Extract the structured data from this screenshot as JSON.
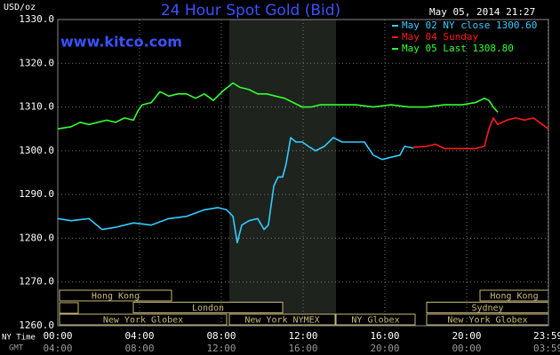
{
  "chart_data": {
    "type": "line",
    "title": "24 Hour Spot Gold (Bid)",
    "y_label": "USD/oz",
    "timestamp": "May 05, 2014 21:27",
    "source": "www.kitco.com",
    "x_axis_labels": [
      "NY Time",
      "GMT"
    ],
    "xlim": [
      0,
      24
    ],
    "xticks": [
      {
        "value": 0,
        "label": "00:00"
      },
      {
        "value": 4,
        "label": "04:00"
      },
      {
        "value": 8,
        "label": "08:00"
      },
      {
        "value": 12,
        "label": "12:00"
      },
      {
        "value": 16,
        "label": "16:00"
      },
      {
        "value": 20,
        "label": "20:00"
      },
      {
        "value": 23.98,
        "label": "23:59"
      }
    ],
    "x2ticks": [
      {
        "value": 0,
        "label": "04:00"
      },
      {
        "value": 4,
        "label": "08:00"
      },
      {
        "value": 8,
        "label": "12:00"
      },
      {
        "value": 12,
        "label": "16:00"
      },
      {
        "value": 16,
        "label": "20:00"
      },
      {
        "value": 20,
        "label": "00:00"
      },
      {
        "value": 23.98,
        "label": "03:59"
      }
    ],
    "ylim": [
      1260,
      1330
    ],
    "yticks": [
      {
        "value": 1260,
        "label": "1260.0"
      },
      {
        "value": 1270,
        "label": "1270.0"
      },
      {
        "value": 1280,
        "label": "1280.0"
      },
      {
        "value": 1290,
        "label": "1290.0"
      },
      {
        "value": 1300,
        "label": "1300.0"
      },
      {
        "value": 1310,
        "label": "1310.0"
      },
      {
        "value": 1320,
        "label": "1320.0"
      },
      {
        "value": 1330,
        "label": "1330.0"
      }
    ],
    "grid": true,
    "market_sessions": [
      "Hong Kong",
      "London",
      "New York Globex",
      "New York NYMEX",
      "NY Globex",
      "Sydney",
      "Hong Kong",
      "New York Globex"
    ],
    "series": [
      {
        "name": "May 02 NY close 1300.60",
        "color": "#33ccff",
        "x": [
          0,
          0.65,
          1.52,
          2.17,
          2.83,
          3.7,
          4.57,
          5.43,
          6.3,
          7.17,
          7.83,
          8.26,
          8.57,
          8.78,
          9,
          9.35,
          9.78,
          10.09,
          10.3,
          10.57,
          10.78,
          11,
          11.17,
          11.39,
          11.65,
          11.96,
          12.26,
          12.61,
          13.04,
          13.48,
          13.91,
          14.35,
          15,
          15.43,
          15.87,
          16.3,
          16.74,
          16.96,
          17.39
        ],
        "values": [
          1284.5,
          1284,
          1284.5,
          1282,
          1282.5,
          1283.5,
          1283,
          1284.5,
          1285,
          1286.5,
          1287,
          1286.5,
          1285,
          1279,
          1283,
          1284,
          1284.5,
          1282,
          1283,
          1292,
          1294,
          1294,
          1297,
          1303,
          1302,
          1302,
          1301,
          1300,
          1301,
          1303,
          1302,
          1302,
          1302,
          1299,
          1298,
          1298.5,
          1299,
          1301,
          1300.6
        ]
      },
      {
        "name": "May 04 Sunday",
        "color": "#ff1a1a",
        "x": [
          17.39,
          18.04,
          18.48,
          18.91,
          19.78,
          20.43,
          20.87,
          21.09,
          21.3,
          21.52,
          21.96,
          22.39,
          22.83,
          23.26,
          23.7,
          24
        ],
        "values": [
          1300.8,
          1301,
          1301.5,
          1300.5,
          1300.5,
          1300.5,
          1301,
          1305,
          1307.5,
          1306,
          1307,
          1307.5,
          1307,
          1307.5,
          1306,
          1305
        ]
      },
      {
        "name": "May 05 Last 1308.80",
        "color": "#33ff33",
        "x": [
          0,
          0.65,
          1.09,
          1.52,
          1.96,
          2.39,
          2.83,
          3.26,
          3.7,
          3.91,
          4.13,
          4.57,
          5,
          5.43,
          5.87,
          6.3,
          6.74,
          7.17,
          7.61,
          8.04,
          8.57,
          8.91,
          9.35,
          9.78,
          10.22,
          10.65,
          11.09,
          11.52,
          11.96,
          12.39,
          12.83,
          13.7,
          14.57,
          15.43,
          16.3,
          17.17,
          18.04,
          18.91,
          19.78,
          20.43,
          20.87,
          21.09,
          21.3,
          21.52
        ],
        "values": [
          1305,
          1305.5,
          1306.5,
          1306,
          1306.5,
          1307,
          1306.5,
          1307.5,
          1307,
          1309,
          1310.5,
          1311,
          1313.5,
          1312.5,
          1313,
          1313,
          1312,
          1313,
          1311.5,
          1313.5,
          1315.5,
          1314.5,
          1314,
          1313,
          1313,
          1312.5,
          1312,
          1311,
          1310,
          1310,
          1310.5,
          1310.5,
          1310.5,
          1310,
          1310.5,
          1310,
          1310,
          1310.5,
          1310.5,
          1311,
          1312,
          1311.5,
          1310,
          1308.8
        ]
      }
    ]
  }
}
